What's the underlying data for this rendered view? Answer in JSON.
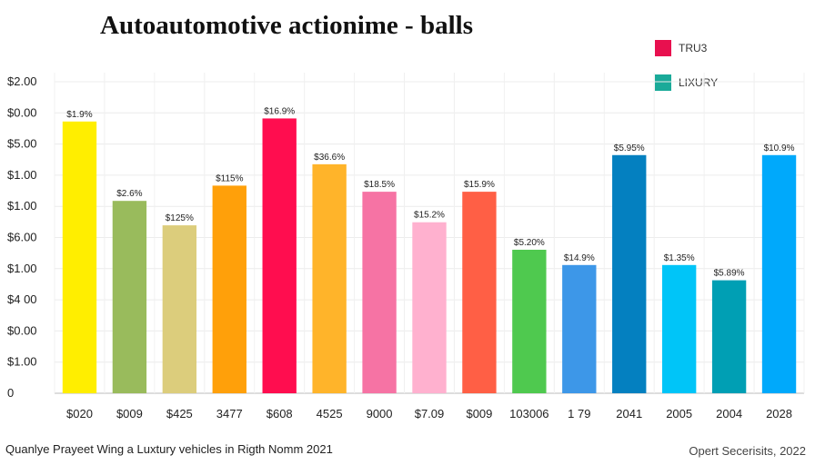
{
  "chart_data": {
    "type": "bar",
    "title": "Autoautomotive actionime - balls",
    "xlabel": "",
    "ylabel": "",
    "y_tick_labels": [
      "0",
      "$1.00",
      "$0.00",
      "$4 00",
      "$1.00",
      "$6.00",
      "$1.00",
      "$1.00",
      "$5.00",
      "$0.00",
      "$2.00"
    ],
    "ylim": [
      0,
      10.5
    ],
    "grid": true,
    "legend_position": "top-right",
    "legend": [
      {
        "label": "TRU3",
        "color": "#e8104f"
      },
      {
        "label": "LIXURY",
        "color": "#1aaa99"
      }
    ],
    "categories": [
      "$020",
      "$009",
      "$425",
      "3477",
      "$608",
      "4525",
      "9000",
      "$7.09",
      "$009",
      "103006",
      "1 79",
      "2041",
      "2005",
      "2004",
      "2028"
    ],
    "values": [
      8.9,
      6.3,
      5.5,
      6.8,
      9.0,
      7.5,
      6.6,
      5.6,
      6.6,
      4.7,
      4.2,
      7.8,
      4.2,
      3.7,
      7.8
    ],
    "data_labels": [
      "$1.9%",
      "$2.6%",
      "$125%",
      "$115%",
      "$16.9%",
      "$36.6%",
      "$18.5%",
      "$15.2%",
      "$15.9%",
      "$5.20%",
      "$14.9%",
      "$5.95%",
      "$1.35%",
      "$5.89%",
      "$10.9%"
    ],
    "colors": [
      "#ffee00",
      "#99bb5c",
      "#dccd7c",
      "#ffa00a",
      "#ff0d4f",
      "#ffb42a",
      "#f673a4",
      "#ffb1cf",
      "#ff5f45",
      "#4fc94f",
      "#3d97e8",
      "#0480c0",
      "#00c5f8",
      "#009fb4",
      "#00a9fb"
    ]
  },
  "caption": "Quanlye Prayeet Wing a Luxtury vehicles in Rigth Nomm 2021",
  "source": "Opert Secerisits, 2022"
}
